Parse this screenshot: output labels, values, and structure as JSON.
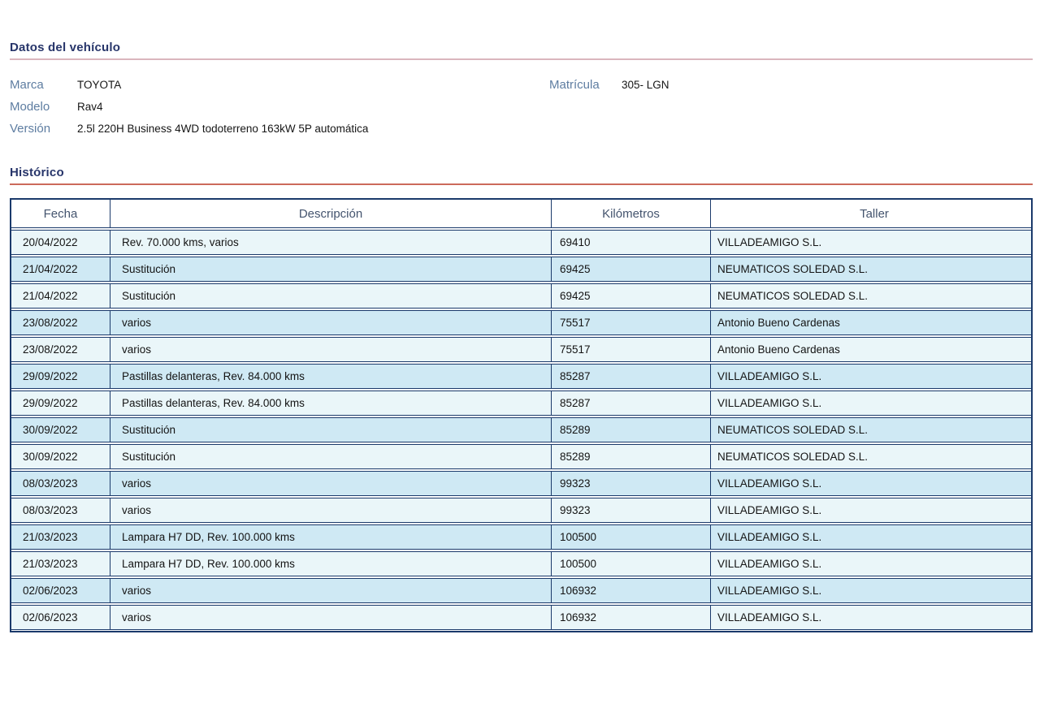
{
  "sections": {
    "vehicle_title": "Datos del vehículo",
    "history_title": "Histórico"
  },
  "vehicle": {
    "marca_label": "Marca",
    "marca": "TOYOTA",
    "modelo_label": "Modelo",
    "modelo": "Rav4",
    "version_label": "Versión",
    "version": "2.5l 220H Business 4WD todoterreno 163kW 5P automática",
    "matricula_label": "Matrícula",
    "matricula": "305- LGN"
  },
  "table": {
    "headers": [
      "Fecha",
      "Descripción",
      "Kilómetros",
      "Taller"
    ],
    "rows": [
      {
        "fecha": "20/04/2022",
        "descripcion": "Rev. 70.000 kms, varios",
        "kilometros": "69410",
        "taller": "VILLADEAMIGO S.L."
      },
      {
        "fecha": "21/04/2022",
        "descripcion": "Sustitución",
        "kilometros": "69425",
        "taller": "NEUMATICOS SOLEDAD S.L."
      },
      {
        "fecha": "21/04/2022",
        "descripcion": "Sustitución",
        "kilometros": "69425",
        "taller": "NEUMATICOS SOLEDAD S.L."
      },
      {
        "fecha": "23/08/2022",
        "descripcion": "varios",
        "kilometros": "75517",
        "taller": "Antonio Bueno Cardenas"
      },
      {
        "fecha": "23/08/2022",
        "descripcion": "varios",
        "kilometros": "75517",
        "taller": "Antonio Bueno Cardenas"
      },
      {
        "fecha": "29/09/2022",
        "descripcion": "Pastillas delanteras, Rev. 84.000 kms",
        "kilometros": "85287",
        "taller": "VILLADEAMIGO S.L."
      },
      {
        "fecha": "29/09/2022",
        "descripcion": "Pastillas delanteras, Rev. 84.000 kms",
        "kilometros": "85287",
        "taller": "VILLADEAMIGO S.L."
      },
      {
        "fecha": "30/09/2022",
        "descripcion": "Sustitución",
        "kilometros": "85289",
        "taller": "NEUMATICOS SOLEDAD S.L."
      },
      {
        "fecha": "30/09/2022",
        "descripcion": "Sustitución",
        "kilometros": "85289",
        "taller": "NEUMATICOS SOLEDAD S.L."
      },
      {
        "fecha": "08/03/2023",
        "descripcion": "varios",
        "kilometros": "99323",
        "taller": "VILLADEAMIGO S.L."
      },
      {
        "fecha": "08/03/2023",
        "descripcion": "varios",
        "kilometros": "99323",
        "taller": "VILLADEAMIGO S.L."
      },
      {
        "fecha": "21/03/2023",
        "descripcion": "Lampara H7 DD, Rev. 100.000 kms",
        "kilometros": "100500",
        "taller": "VILLADEAMIGO S.L."
      },
      {
        "fecha": "21/03/2023",
        "descripcion": "Lampara H7 DD, Rev. 100.000 kms",
        "kilometros": "100500",
        "taller": "VILLADEAMIGO S.L."
      },
      {
        "fecha": "02/06/2023",
        "descripcion": "varios",
        "kilometros": "106932",
        "taller": "VILLADEAMIGO S.L."
      },
      {
        "fecha": "02/06/2023",
        "descripcion": "varios",
        "kilometros": "106932",
        "taller": "VILLADEAMIGO S.L."
      }
    ]
  },
  "colors": {
    "title_navy": "#27356a",
    "label_blue": "#5e7da1",
    "rule_pink": "#dab6bd",
    "rule_red": "#cc6a5b",
    "table_border": "#1b3a6b",
    "header_text": "#44546e",
    "row_pale": "#eaf6f9",
    "row_blue": "#cfe9f4"
  }
}
